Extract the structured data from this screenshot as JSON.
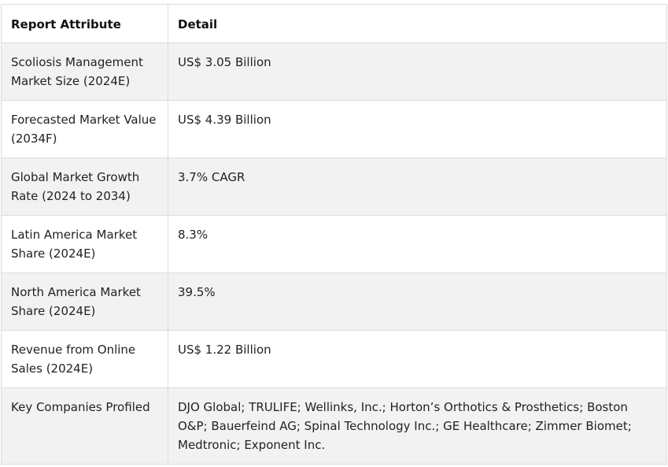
{
  "table": {
    "headers": [
      "Report Attribute",
      "Detail"
    ],
    "rows": [
      {
        "attribute": "Scoliosis Management Market Size (2024E)",
        "detail": "US$ 3.05 Billion"
      },
      {
        "attribute": "Forecasted Market Value (2034F)",
        "detail": "US$ 4.39 Billion"
      },
      {
        "attribute": "Global Market Growth Rate (2024 to 2034)",
        "detail": "3.7% CAGR"
      },
      {
        "attribute": "Latin America Market Share (2024E)",
        "detail": "8.3%"
      },
      {
        "attribute": "North America Market Share (2024E)",
        "detail": "39.5%"
      },
      {
        "attribute": "Revenue from Online Sales (2024E)",
        "detail": "US$ 1.22 Billion"
      },
      {
        "attribute": "Key Companies Profiled",
        "detail": "DJO Global; TRULIFE; Wellinks, Inc.; Horton’s Orthotics & Prosthetics; Boston O&P; Bauerfeind AG; Spinal Technology Inc.; GE Healthcare; Zimmer Biomet; Medtronic; Exponent Inc."
      }
    ]
  }
}
